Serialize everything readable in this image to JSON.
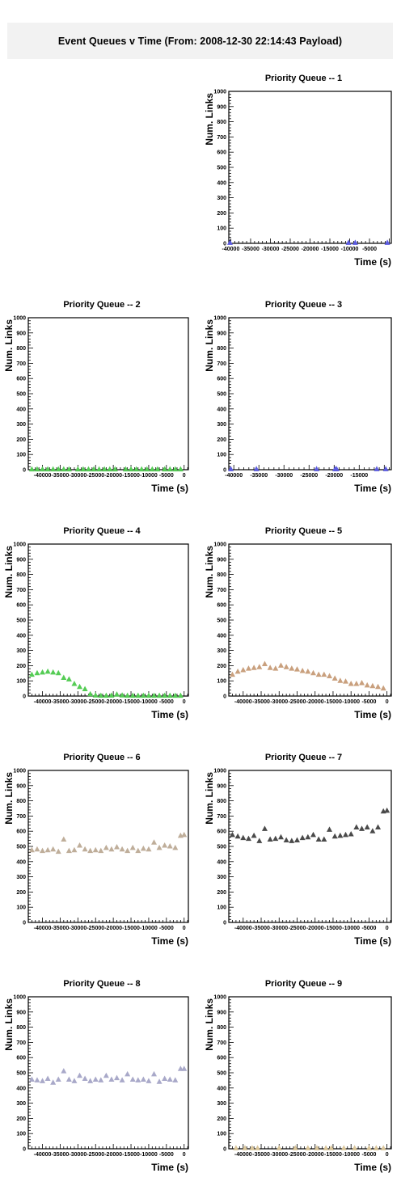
{
  "canvas_title": "Event Queues v Time (From: 2008-12-30 22:14:43 Payload)",
  "chart_data": [
    {
      "type": "scatter",
      "title": "Priority Queue -- 1",
      "xlabel": "Time (s)",
      "ylabel": "Num. Links",
      "xlim": [
        -40500,
        500
      ],
      "ylim": [
        0,
        1000
      ],
      "x_ticks": [
        -40000,
        -35000,
        -30000,
        -25000,
        -20000,
        -15000,
        -10000,
        -5000
      ],
      "y_ticks": [
        0,
        100,
        200,
        300,
        400,
        500,
        600,
        700,
        800,
        900,
        1000
      ],
      "series": [
        {
          "color": "#5b5be0",
          "marker": "triangle",
          "x": [
            -40200,
            -10300,
            -8600,
            -500
          ],
          "y": [
            3,
            3,
            3,
            3
          ]
        }
      ]
    },
    {
      "type": "scatter",
      "title": "Priority Queue -- 2",
      "xlabel": "Time (s)",
      "ylabel": "Num. Links",
      "xlim": [
        -44000,
        1200
      ],
      "ylim": [
        0,
        1000
      ],
      "x_ticks": [
        -40000,
        -35000,
        -30000,
        -25000,
        -20000,
        -15000,
        -10000,
        -5000,
        0
      ],
      "y_ticks": [
        0,
        100,
        200,
        300,
        400,
        500,
        600,
        700,
        800,
        900,
        1000
      ],
      "series": [
        {
          "color": "#55cc55",
          "marker": "triangle",
          "x": [
            -43000,
            -41500,
            -40000,
            -38500,
            -37000,
            -35500,
            -34000,
            -32500,
            -30000,
            -28500,
            -27000,
            -25500,
            -24000,
            -22500,
            -21000,
            -19500,
            -16500,
            -15000,
            -13500,
            -12000,
            -10500,
            -9000,
            -7500,
            -5500,
            -4000,
            -2500,
            -1000
          ],
          "y": [
            2,
            2,
            2,
            2,
            2,
            2,
            2,
            2,
            2,
            2,
            2,
            2,
            2,
            2,
            2,
            2,
            2,
            2,
            2,
            2,
            2,
            2,
            2,
            2,
            2,
            2,
            2
          ]
        }
      ]
    },
    {
      "type": "scatter",
      "title": "Priority Queue -- 3",
      "xlabel": "Time (s)",
      "ylabel": "Num. Links",
      "xlim": [
        -41000,
        -8600
      ],
      "ylim": [
        0,
        1000
      ],
      "x_ticks": [
        -40000,
        -35000,
        -30000,
        -25000,
        -20000,
        -15000
      ],
      "y_ticks": [
        0,
        100,
        200,
        300,
        400,
        500,
        600,
        700,
        800,
        900,
        1000
      ],
      "series": [
        {
          "color": "#5b5be0",
          "marker": "triangle",
          "x": [
            -40600,
            -35500,
            -23500,
            -19800,
            -19500,
            -11500,
            -9700
          ],
          "y": [
            3,
            3,
            3,
            3,
            3,
            3,
            3
          ]
        }
      ]
    },
    {
      "type": "scatter",
      "title": "Priority Queue -- 4",
      "xlabel": "Time (s)",
      "ylabel": "Num. Links",
      "xlim": [
        -44000,
        1200
      ],
      "ylim": [
        0,
        1000
      ],
      "x_ticks": [
        -40000,
        -35000,
        -30000,
        -25000,
        -20000,
        -15000,
        -10000,
        -5000,
        0
      ],
      "y_ticks": [
        0,
        100,
        200,
        300,
        400,
        500,
        600,
        700,
        800,
        900,
        1000
      ],
      "series": [
        {
          "color": "#55cc55",
          "marker": "triangle",
          "x": [
            -43000,
            -41500,
            -40000,
            -38500,
            -37000,
            -35500,
            -34000,
            -32500,
            -31000,
            -29500,
            -28000,
            -26500,
            -25000,
            -23500,
            -22000,
            -20500,
            -19000,
            -17500,
            -16000,
            -14500,
            -13000,
            -11500,
            -10000,
            -8500,
            -7000,
            -5500,
            -4000,
            -2500,
            -1000
          ],
          "y": [
            140,
            150,
            155,
            160,
            155,
            150,
            120,
            110,
            80,
            60,
            45,
            12,
            4,
            2,
            2,
            3,
            10,
            4,
            2,
            2,
            2,
            2,
            2,
            2,
            2,
            2,
            2,
            2,
            2
          ]
        }
      ]
    },
    {
      "type": "scatter",
      "title": "Priority Queue -- 5",
      "xlabel": "Time (s)",
      "ylabel": "Num. Links",
      "xlim": [
        -44000,
        1200
      ],
      "ylim": [
        0,
        1000
      ],
      "x_ticks": [
        -40000,
        -35000,
        -30000,
        -25000,
        -20000,
        -15000,
        -10000,
        -5000,
        0
      ],
      "y_ticks": [
        0,
        100,
        200,
        300,
        400,
        500,
        600,
        700,
        800,
        900,
        1000
      ],
      "series": [
        {
          "color": "#c9a07e",
          "marker": "triangle",
          "x": [
            -43000,
            -41500,
            -40000,
            -38500,
            -37000,
            -35500,
            -34000,
            -32500,
            -31000,
            -29500,
            -28000,
            -26500,
            -25000,
            -23500,
            -22000,
            -20500,
            -19000,
            -17500,
            -16000,
            -14500,
            -13000,
            -11500,
            -10000,
            -8500,
            -7000,
            -5500,
            -4000,
            -2500,
            -1000
          ],
          "y": [
            140,
            160,
            170,
            180,
            185,
            190,
            210,
            185,
            180,
            200,
            190,
            180,
            175,
            165,
            160,
            150,
            140,
            140,
            130,
            115,
            100,
            95,
            80,
            80,
            85,
            70,
            65,
            60,
            50
          ]
        }
      ]
    },
    {
      "type": "scatter",
      "title": "Priority Queue -- 6",
      "xlabel": "Time (s)",
      "ylabel": "Num. Links",
      "xlim": [
        -44000,
        1200
      ],
      "ylim": [
        0,
        1000
      ],
      "x_ticks": [
        -40000,
        -35000,
        -30000,
        -25000,
        -20000,
        -15000,
        -10000,
        -5000,
        0
      ],
      "y_ticks": [
        0,
        100,
        200,
        300,
        400,
        500,
        600,
        700,
        800,
        900,
        1000
      ],
      "series": [
        {
          "color": "#bfae9a",
          "marker": "triangle",
          "x": [
            -43000,
            -41500,
            -40000,
            -38500,
            -37000,
            -35500,
            -34000,
            -32500,
            -31000,
            -29500,
            -28000,
            -26500,
            -25000,
            -23500,
            -22000,
            -20500,
            -19000,
            -17500,
            -16000,
            -14500,
            -13000,
            -11500,
            -10000,
            -8500,
            -7000,
            -5500,
            -4000,
            -2500,
            -1000,
            0
          ],
          "y": [
            475,
            480,
            470,
            475,
            480,
            465,
            545,
            470,
            475,
            505,
            480,
            470,
            475,
            470,
            490,
            480,
            495,
            480,
            470,
            490,
            470,
            485,
            480,
            525,
            490,
            505,
            500,
            490,
            570,
            575
          ]
        }
      ]
    },
    {
      "type": "scatter",
      "title": "Priority Queue -- 7",
      "xlabel": "Time (s)",
      "ylabel": "Num. Links",
      "xlim": [
        -44000,
        1200
      ],
      "ylim": [
        0,
        1000
      ],
      "x_ticks": [
        -40000,
        -35000,
        -30000,
        -25000,
        -20000,
        -15000,
        -10000,
        -5000,
        0
      ],
      "y_ticks": [
        0,
        100,
        200,
        300,
        400,
        500,
        600,
        700,
        800,
        900,
        1000
      ],
      "series": [
        {
          "color": "#4a4a4a",
          "marker": "triangle",
          "x": [
            -43000,
            -41500,
            -40000,
            -38500,
            -37000,
            -35500,
            -34000,
            -32500,
            -31000,
            -29500,
            -28000,
            -26500,
            -25000,
            -23500,
            -22000,
            -20500,
            -19000,
            -17500,
            -16000,
            -14500,
            -13000,
            -11500,
            -10000,
            -8500,
            -7000,
            -5500,
            -4000,
            -2500,
            -1000,
            0
          ],
          "y": [
            575,
            565,
            555,
            550,
            570,
            535,
            615,
            545,
            550,
            560,
            540,
            535,
            540,
            555,
            560,
            575,
            545,
            545,
            610,
            565,
            570,
            575,
            580,
            625,
            615,
            625,
            600,
            625,
            730,
            735
          ]
        }
      ]
    },
    {
      "type": "scatter",
      "title": "Priority Queue -- 8",
      "xlabel": "Time (s)",
      "ylabel": "Num. Links",
      "xlim": [
        -44000,
        1200
      ],
      "ylim": [
        0,
        1000
      ],
      "x_ticks": [
        -40000,
        -35000,
        -30000,
        -25000,
        -20000,
        -15000,
        -10000,
        -5000,
        0
      ],
      "y_ticks": [
        0,
        100,
        200,
        300,
        400,
        500,
        600,
        700,
        800,
        900,
        1000
      ],
      "series": [
        {
          "color": "#a9a9c9",
          "marker": "triangle",
          "x": [
            -43000,
            -41500,
            -40000,
            -38500,
            -37000,
            -35500,
            -34000,
            -32500,
            -31000,
            -29500,
            -28000,
            -26500,
            -25000,
            -23500,
            -22000,
            -20500,
            -19000,
            -17500,
            -16000,
            -14500,
            -13000,
            -11500,
            -10000,
            -8500,
            -7000,
            -5500,
            -4000,
            -2500,
            -1000,
            0
          ],
          "y": [
            455,
            450,
            445,
            460,
            435,
            455,
            510,
            455,
            445,
            480,
            460,
            445,
            455,
            450,
            480,
            455,
            465,
            450,
            490,
            455,
            450,
            455,
            445,
            490,
            440,
            460,
            455,
            450,
            525,
            525
          ]
        }
      ]
    },
    {
      "type": "scatter",
      "title": "Priority Queue -- 9",
      "xlabel": "Time (s)",
      "ylabel": "Num. Links",
      "xlim": [
        -44000,
        1200
      ],
      "ylim": [
        0,
        1000
      ],
      "x_ticks": [
        -40000,
        -35000,
        -30000,
        -25000,
        -20000,
        -15000,
        -10000,
        -5000,
        0
      ],
      "y_ticks": [
        0,
        100,
        200,
        300,
        400,
        500,
        600,
        700,
        800,
        900,
        1000
      ],
      "series": [
        {
          "color": "#d9c59a",
          "marker": "triangle",
          "x": [
            -42000,
            -39500,
            -37500,
            -36000,
            -30000,
            -25500,
            -22000,
            -19500,
            -17000,
            -15500,
            -12000,
            -9000,
            -5000,
            -3000,
            -1000
          ],
          "y": [
            3,
            3,
            3,
            3,
            3,
            3,
            3,
            3,
            3,
            3,
            3,
            3,
            3,
            3,
            3
          ]
        }
      ]
    }
  ]
}
